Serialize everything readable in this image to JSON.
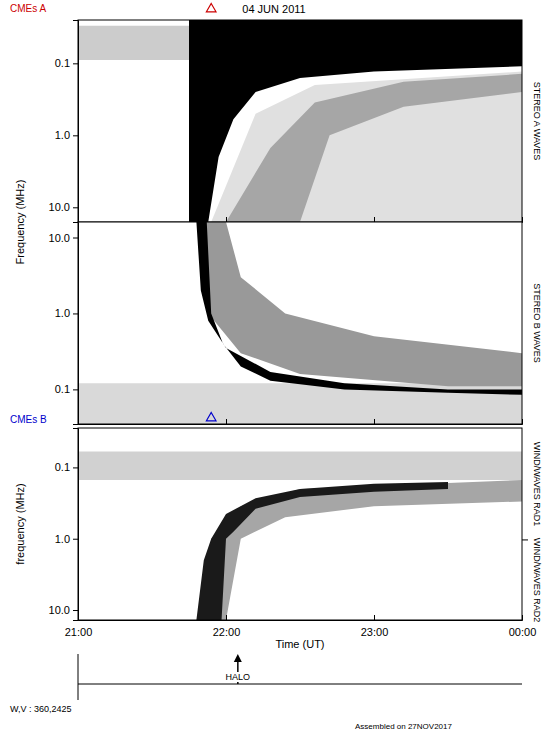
{
  "chart_data": {
    "type": "spectrogram",
    "title": "04 JUN 2011",
    "x_label": "Time (UT)",
    "xlim": [
      21,
      24
    ],
    "xticks": [
      {
        "value": 21,
        "label": "21:00"
      },
      {
        "value": 22,
        "label": "22:00"
      },
      {
        "value": 23,
        "label": "23:00"
      },
      {
        "value": 24,
        "label": "00:00"
      }
    ],
    "log": "y",
    "panels": [
      {
        "y_label": "Frequency (MHz)",
        "receivers": [
          {
            "label": "STEREO A WAVES",
            "range": [
              16,
              0.025
            ]
          }
        ],
        "ylim": [
          16,
          0.025
        ],
        "yticks": [
          0.1,
          {
            "value": 1,
            "label": "1.0"
          },
          {
            "value": 10,
            "label": "10.0"
          }
        ],
        "tick_labels": "y",
        "cme": {
          "label": "CMEs A",
          "color": "#cc0000",
          "x": 21.9
        },
        "regions": [
          {
            "intensity": 0.2,
            "x": [
              21,
              21.75,
              21.75,
              21
            ],
            "y": [
              0.09,
              0.09,
              0.03,
              0.03
            ]
          },
          {
            "intensity": 0.12,
            "x": [
              21.9,
              24,
              24,
              22.6,
              22.2
            ],
            "y": [
              16,
              16,
              0.13,
              0.2,
              0.5
            ]
          },
          {
            "intensity": 0.35,
            "x": [
              22.0,
              22.3,
              22.6,
              23.2,
              24,
              24,
              23.2,
              22.7,
              22.5
            ],
            "y": [
              16,
              1.5,
              0.35,
              0.18,
              0.14,
              0.25,
              0.4,
              1,
              16
            ]
          },
          {
            "intensity": 1,
            "x": [
              21.75,
              21.75,
              24,
              24,
              23,
              22.5,
              22.2,
              22.05,
              21.95,
              21.88
            ],
            "y": [
              16,
              0.025,
              0.025,
              0.11,
              0.13,
              0.16,
              0.25,
              0.6,
              2,
              16
            ]
          }
        ]
      },
      {
        "receivers": [
          {
            "label": "STEREO B WAVES",
            "range": [
              0.035,
              16
            ]
          }
        ],
        "ylim": [
          0.035,
          16
        ],
        "yticks": [
          {
            "value": 10,
            "label": "10.0"
          },
          {
            "value": 1,
            "label": "1.0"
          },
          0.1
        ],
        "tick_labels": "y",
        "cme": {
          "label": "CMEs B",
          "color": "#0000cc",
          "x": 21.9
        },
        "regions": [
          {
            "intensity": 0.15,
            "x": [
              21,
              24,
              24,
              21
            ],
            "y": [
              0.12,
              0.12,
              0.035,
              0.035
            ]
          },
          {
            "intensity": 0.4,
            "x": [
              21.82,
              21.88,
              22.1,
              22.5,
              23.5,
              24,
              24,
              23,
              22.4,
              22.1,
              22.0
            ],
            "y": [
              16,
              1,
              0.3,
              0.16,
              0.11,
              0.11,
              0.3,
              0.5,
              1,
              3,
              16
            ]
          },
          {
            "intensity": 1,
            "x": [
              21.8,
              21.83,
              21.88,
              22.0,
              22.3,
              22.8,
              23.5,
              24,
              24,
              23.5,
              22.8,
              22.3,
              22.1,
              21.98,
              21.9,
              21.87
            ],
            "y": [
              16,
              2,
              0.8,
              0.35,
              0.17,
              0.12,
              0.1,
              0.1,
              0.085,
              0.09,
              0.1,
              0.13,
              0.2,
              0.4,
              1,
              16
            ]
          }
        ]
      },
      {
        "y_label": "frequency (MHz)",
        "receivers": [
          {
            "label": "WIND/WAVES RAD1",
            "range": [
              0.028,
              1.04
            ]
          },
          {
            "label": "WIND/WAVES RAD2",
            "range": [
              1.04,
              13.8
            ]
          }
        ],
        "ylim": [
          13.8,
          0.028
        ],
        "yticks": [
          0.1,
          {
            "value": 1,
            "label": "1.0"
          },
          {
            "value": 10,
            "label": "10.0"
          }
        ],
        "regions": [
          {
            "intensity": 0.18,
            "x": [
              21,
              24,
              24,
              21
            ],
            "y": [
              0.06,
              0.06,
              0.15,
              0.15
            ]
          },
          {
            "intensity": 0.35,
            "x": [
              21.83,
              21.9,
              22.1,
              22.5,
              24,
              24,
              23,
              22.4,
              22.1,
              22.0
            ],
            "y": [
              13.8,
              1,
              0.35,
              0.2,
              0.15,
              0.3,
              0.35,
              0.5,
              1,
              13.8
            ]
          },
          {
            "intensity": 0.9,
            "x": [
              21.8,
              21.85,
              21.9,
              22.0,
              22.2,
              22.5,
              23.0,
              23.5,
              23.5,
              23,
              22.5,
              22.2,
              22.05,
              22.0,
              21.97
            ],
            "y": [
              13.8,
              2,
              1,
              0.45,
              0.27,
              0.2,
              0.17,
              0.16,
              0.2,
              0.22,
              0.26,
              0.38,
              0.8,
              1,
              13.8
            ]
          }
        ]
      }
    ],
    "events": [
      {
        "label": "HALO",
        "x": 22.08
      }
    ],
    "footer": [
      "W,V : 360,2425",
      "Assembled on 27NOV2017"
    ]
  }
}
